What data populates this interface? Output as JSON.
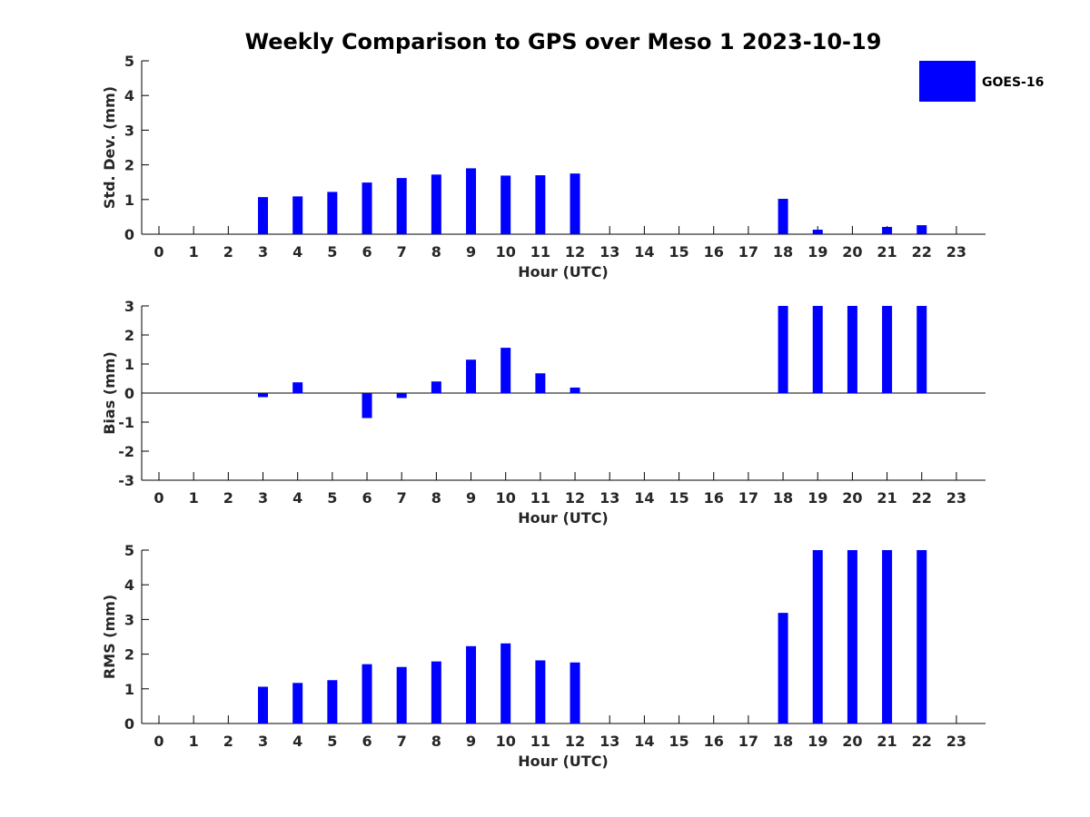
{
  "title": "Weekly Comparison to GPS over Meso 1 2023-10-19",
  "legend": {
    "label": "GOES-16",
    "color": "#0000ff"
  },
  "chart_data": [
    {
      "type": "bar",
      "xlabel": "Hour (UTC)",
      "ylabel": "Std. Dev. (mm)",
      "categories": [
        "0",
        "1",
        "2",
        "3",
        "4",
        "5",
        "6",
        "7",
        "8",
        "9",
        "10",
        "11",
        "12",
        "13",
        "14",
        "15",
        "16",
        "17",
        "18",
        "19",
        "20",
        "21",
        "22",
        "23"
      ],
      "ylim": [
        0,
        5
      ],
      "yticks": [
        "0",
        "1",
        "2",
        "3",
        "4",
        "5"
      ],
      "series": [
        {
          "name": "GOES-16",
          "values": [
            0,
            0,
            0,
            1.07,
            1.09,
            1.22,
            1.49,
            1.62,
            1.72,
            1.9,
            1.69,
            1.7,
            1.75,
            0,
            0,
            0,
            0,
            0,
            1.02,
            0.13,
            0,
            0.21,
            0.26,
            0
          ]
        }
      ]
    },
    {
      "type": "bar",
      "xlabel": "Hour (UTC)",
      "ylabel": "Bias (mm)",
      "categories": [
        "0",
        "1",
        "2",
        "3",
        "4",
        "5",
        "6",
        "7",
        "8",
        "9",
        "10",
        "11",
        "12",
        "13",
        "14",
        "15",
        "16",
        "17",
        "18",
        "19",
        "20",
        "21",
        "22",
        "23"
      ],
      "ylim": [
        -3,
        3
      ],
      "yticks": [
        "-3",
        "-2",
        "-1",
        "0",
        "1",
        "2",
        "3"
      ],
      "series": [
        {
          "name": "GOES-16",
          "values": [
            0,
            0,
            0,
            -0.14,
            0.37,
            0,
            -0.86,
            -0.17,
            0.4,
            1.15,
            1.56,
            0.68,
            0.19,
            0,
            0,
            0,
            0,
            0,
            3,
            3,
            3,
            3,
            3,
            0
          ]
        }
      ]
    },
    {
      "type": "bar",
      "xlabel": "Hour (UTC)",
      "ylabel": "RMS (mm)",
      "categories": [
        "0",
        "1",
        "2",
        "3",
        "4",
        "5",
        "6",
        "7",
        "8",
        "9",
        "10",
        "11",
        "12",
        "13",
        "14",
        "15",
        "16",
        "17",
        "18",
        "19",
        "20",
        "21",
        "22",
        "23"
      ],
      "ylim": [
        0,
        5
      ],
      "yticks": [
        "0",
        "1",
        "2",
        "3",
        "4",
        "5"
      ],
      "series": [
        {
          "name": "GOES-16",
          "values": [
            0,
            0,
            0,
            1.06,
            1.17,
            1.25,
            1.71,
            1.63,
            1.79,
            2.23,
            2.31,
            1.82,
            1.76,
            0,
            0,
            0,
            0,
            0,
            3.19,
            5,
            5,
            5,
            5,
            0
          ]
        }
      ]
    }
  ]
}
